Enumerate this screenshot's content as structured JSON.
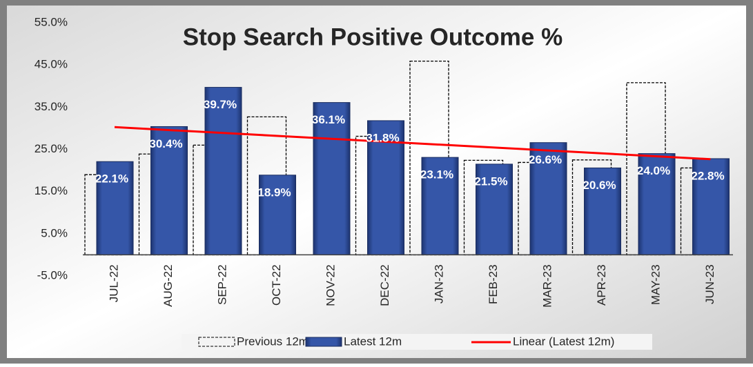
{
  "chart_data": {
    "type": "bar",
    "title": "Stop Search Positive Outcome %",
    "categories": [
      "JUL-22",
      "AUG-22",
      "SEP-22",
      "OCT-22",
      "NOV-22",
      "DEC-22",
      "JAN-23",
      "FEB-23",
      "MAR-23",
      "APR-23",
      "MAY-23",
      "JUN-23"
    ],
    "series": [
      {
        "name": "Previous 12m",
        "color": "#000000",
        "style": "dashed",
        "values": [
          19.0,
          23.9,
          26.0,
          32.7,
          null,
          28.1,
          45.9,
          22.4,
          21.9,
          22.5,
          40.8,
          20.6
        ]
      },
      {
        "name": "Latest 12m",
        "color": "#2e4d9c",
        "values": [
          22.1,
          30.4,
          39.7,
          18.9,
          36.1,
          31.8,
          23.1,
          21.5,
          26.6,
          20.6,
          24.0,
          22.8
        ],
        "value_labels": [
          "22.1%",
          "30.4%",
          "39.7%",
          "18.9%",
          "36.1%",
          "31.8%",
          "23.1%",
          "21.5%",
          "26.6%",
          "20.6%",
          "24.0%",
          "22.8%"
        ]
      }
    ],
    "trendline": {
      "name": "Linear (Latest 12m)",
      "color": "#ff0000",
      "of_series": 1
    },
    "ylim": [
      -5,
      55
    ],
    "yticks": [
      {
        "value": -5,
        "label": "-5.0%"
      },
      {
        "value": 5,
        "label": "5.0%"
      },
      {
        "value": 15,
        "label": "15.0%"
      },
      {
        "value": 25,
        "label": "25.0%"
      },
      {
        "value": 35,
        "label": "35.0%"
      },
      {
        "value": 45,
        "label": "45.0%"
      },
      {
        "value": 55,
        "label": "55.0%"
      }
    ],
    "grid": false,
    "legend": "bottom"
  }
}
